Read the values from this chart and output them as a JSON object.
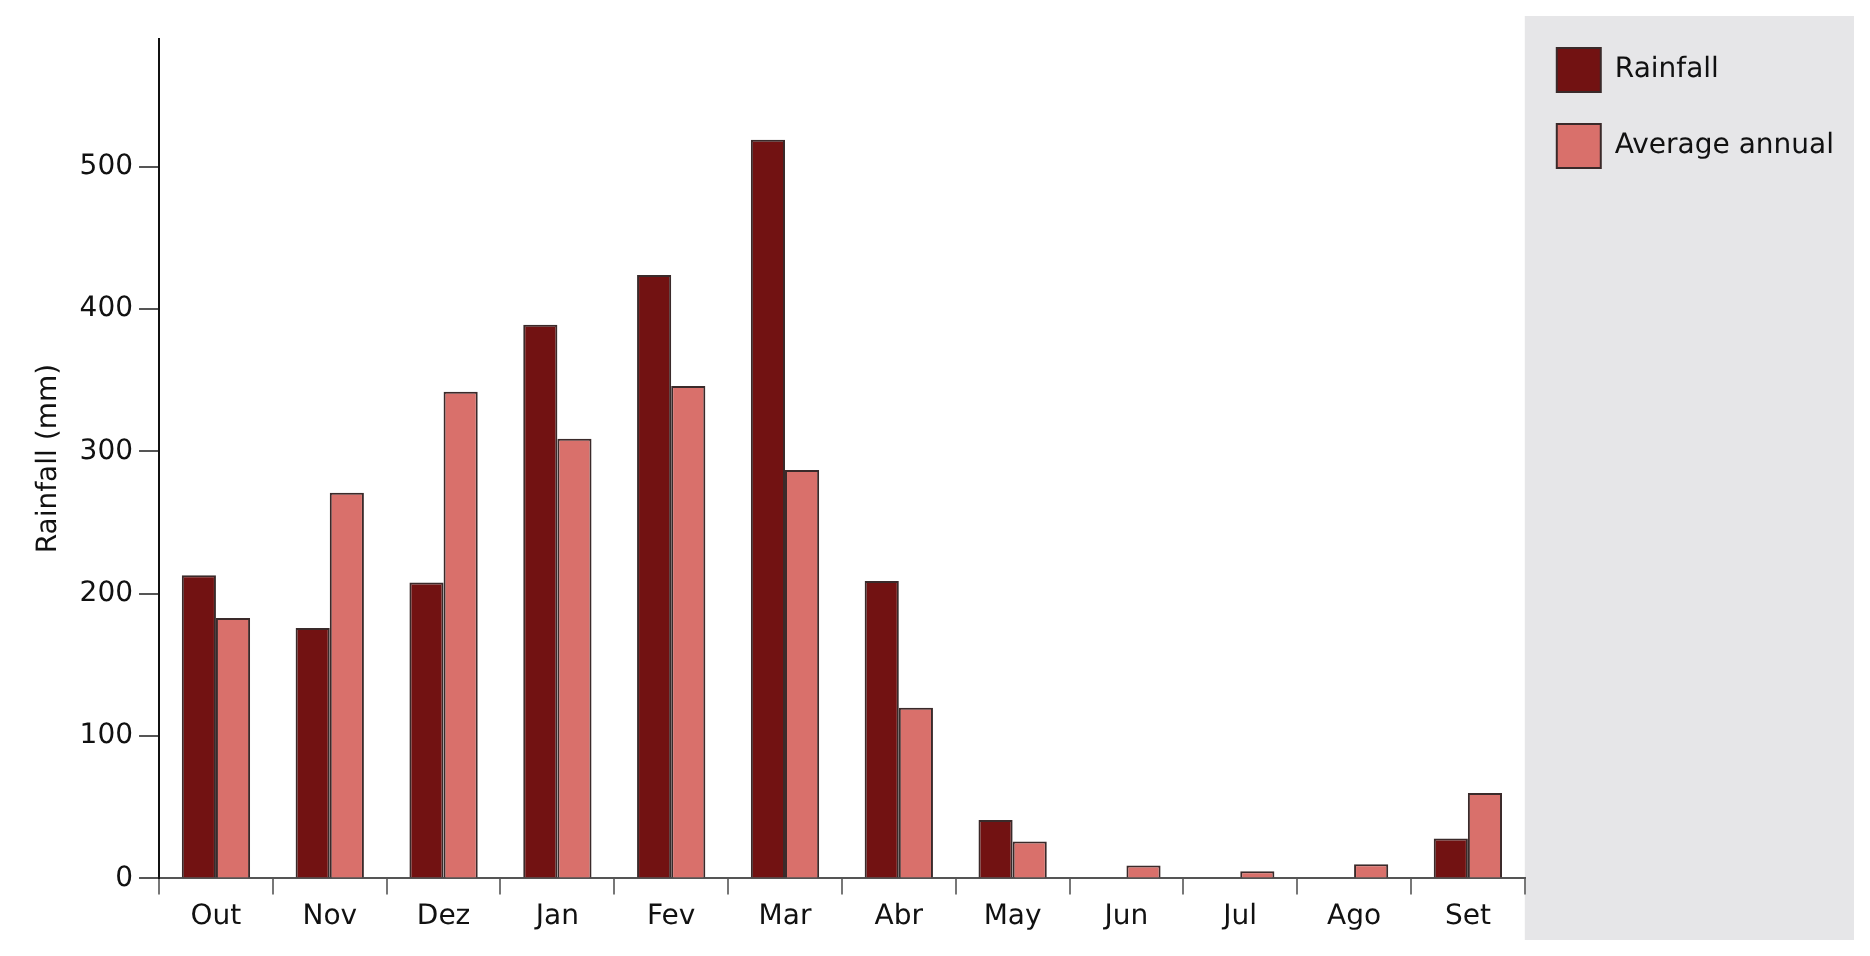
{
  "chart_data": {
    "type": "bar",
    "ylabel": "Rainfall (mm)",
    "categories": [
      "Out",
      "Nov",
      "Dez",
      "Jan",
      "Fev",
      "Mar",
      "Abr",
      "May",
      "Jun",
      "Jul",
      "Ago",
      "Set"
    ],
    "series": [
      {
        "name": "Rainfall",
        "color": "#721212",
        "values": [
          213,
          176,
          208,
          389,
          424,
          519,
          209,
          41,
          0,
          0,
          0,
          28
        ]
      },
      {
        "name": "Average annual",
        "color": "#d9706b",
        "values": [
          183,
          271,
          342,
          309,
          346,
          287,
          120,
          26,
          9,
          5,
          10,
          60
        ]
      }
    ],
    "ylim": [
      0,
      590
    ],
    "yticks": [
      0,
      100,
      200,
      300,
      400,
      500
    ],
    "legend": "right",
    "grid": false
  }
}
